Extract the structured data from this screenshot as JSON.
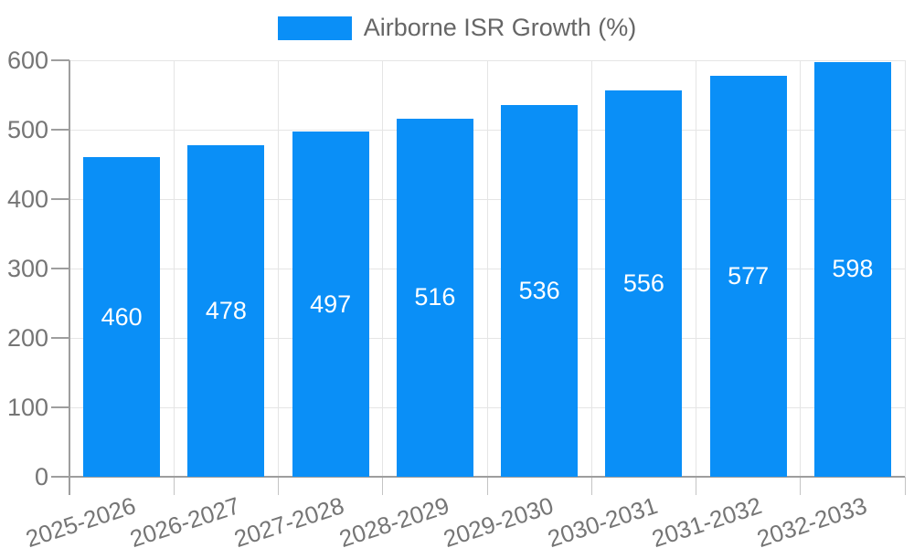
{
  "legend": {
    "label": "Airborne ISR Growth (%)"
  },
  "chart_data": {
    "type": "bar",
    "title": "",
    "categories": [
      "2025-2026",
      "2026-2027",
      "2027-2028",
      "2028-2029",
      "2029-2030",
      "2030-2031",
      "2031-2032",
      "2032-2033"
    ],
    "series": [
      {
        "name": "Airborne ISR Growth (%)",
        "values": [
          460,
          478,
          497,
          516,
          536,
          556,
          577,
          598
        ]
      }
    ],
    "value_labels": "inside-center",
    "xlabel": "",
    "ylabel": "",
    "ylim": [
      0,
      600
    ],
    "yticks": [
      0,
      100,
      200,
      300,
      400,
      500,
      600
    ],
    "grid": true,
    "legend_position": "top-center",
    "x_label_rotation_deg": -18,
    "colors": {
      "bar": "#0a8ff7",
      "value_label": "#ffffff",
      "axis_text": "#757575",
      "legend_text": "#666666",
      "grid_line": "#e5e5e5",
      "axis_line": "#9e9e9e",
      "minor_tick": "#c4c4c4",
      "background": "#ffffff"
    }
  }
}
